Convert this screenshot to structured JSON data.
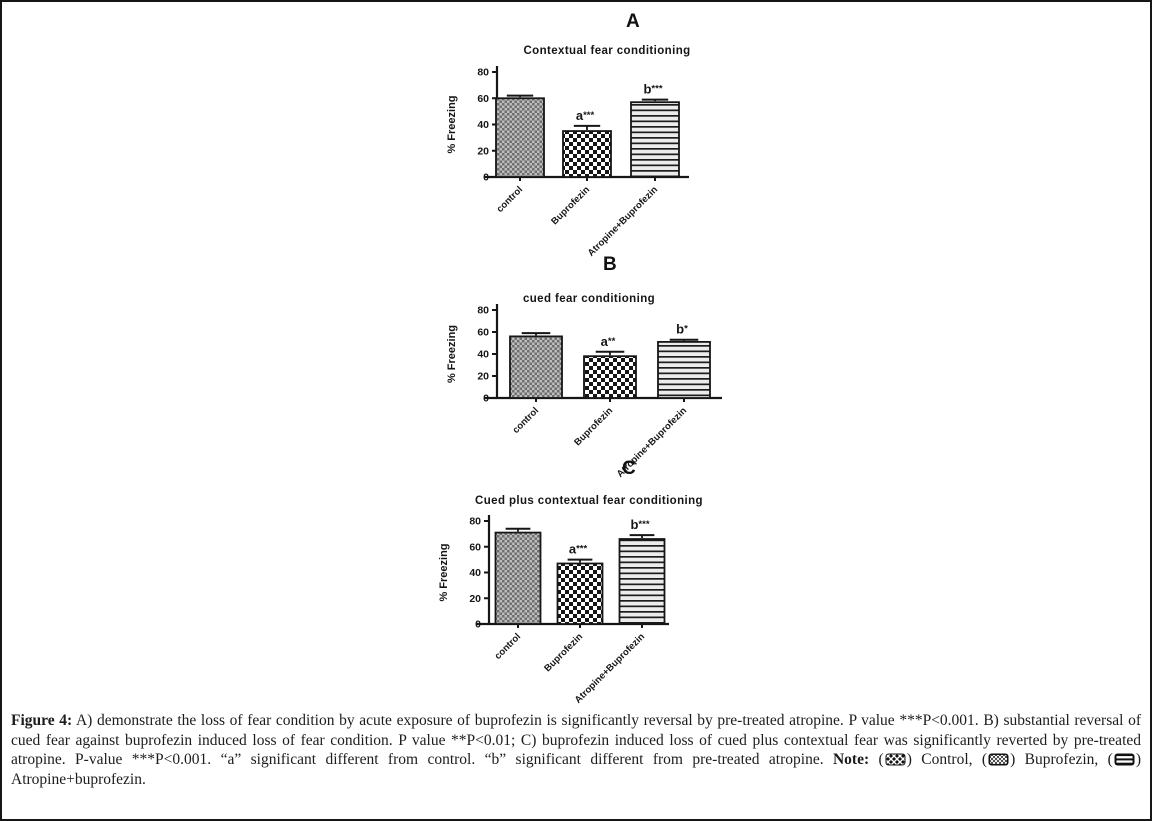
{
  "colors": {
    "ink": "#161616",
    "background": "#ffffff",
    "caption_text": "#1c1c1c",
    "bar_gray": "#bdbdbd",
    "bar_gray_dark": "#6e6e6e"
  },
  "chart_data": [
    {
      "type": "bar",
      "panel": "A",
      "title": "Contextual fear conditioning",
      "xlabel": "",
      "ylabel": "% Freezing",
      "ylim": [
        0,
        80
      ],
      "yticks": [
        0,
        20,
        40,
        60,
        80
      ],
      "grid": false,
      "legend_position": "none",
      "categories": [
        "control",
        "Buprofezin",
        "Atropine+Buprofezin"
      ],
      "values": [
        60,
        35,
        57
      ],
      "errors": [
        2,
        4,
        2
      ],
      "sig_labels": [
        "",
        "a***",
        "b***"
      ],
      "bar_patterns": [
        "gray-dense-checker",
        "checkerboard",
        "horizontal-lines"
      ]
    },
    {
      "type": "bar",
      "panel": "B",
      "title": "cued fear conditioning",
      "xlabel": "",
      "ylabel": "% Freezing",
      "ylim": [
        0,
        80
      ],
      "yticks": [
        0,
        20,
        40,
        60,
        80
      ],
      "grid": false,
      "legend_position": "none",
      "categories": [
        "control",
        "Buprofezin",
        "Atropine+Buprofezin"
      ],
      "values": [
        56,
        38,
        51
      ],
      "errors": [
        3,
        4,
        2
      ],
      "sig_labels": [
        "",
        "a**",
        "b*"
      ],
      "bar_patterns": [
        "gray-dense-checker",
        "checkerboard",
        "horizontal-lines"
      ]
    },
    {
      "type": "bar",
      "panel": "C",
      "title": "Cued plus contextual fear conditioning",
      "xlabel": "",
      "ylabel": "% Freezing",
      "ylim": [
        0,
        80
      ],
      "yticks": [
        0,
        20,
        40,
        60,
        80
      ],
      "grid": false,
      "legend_position": "none",
      "categories": [
        "control",
        "Buprofezin",
        "Atropine+Buprofezin"
      ],
      "values": [
        71,
        47,
        66
      ],
      "errors": [
        3,
        3,
        3
      ],
      "sig_labels": [
        "",
        "a***",
        "b***"
      ],
      "bar_patterns": [
        "gray-dense-checker",
        "checkerboard",
        "horizontal-lines"
      ]
    }
  ],
  "caption": {
    "figure_label": "Figure 4:",
    "body": " A) demonstrate the loss of fear condition by acute exposure of buprofezin is significantly reversal by pre-treated atropine. P value ***P<0.001. B) substantial reversal of cued fear against buprofezin induced loss of fear condition. P value **P<0.01; C) buprofezin induced loss of cued plus contextual fear was significantly reverted by pre-treated atropine. P-value ***P<0.001. “a” significant different from control. “b” significant different from pre-treated atropine.",
    "note_label": " Note: ",
    "legend": [
      {
        "icon": "control-swatch",
        "pre": "(",
        "post": ") Control, "
      },
      {
        "icon": "buprofezin-swatch",
        "pre": "(",
        "post": ") Buprofezin, "
      },
      {
        "icon": "atropine-buprofezin-swatch",
        "pre": "(",
        "post": ") Atropine+buprofezin."
      }
    ]
  }
}
